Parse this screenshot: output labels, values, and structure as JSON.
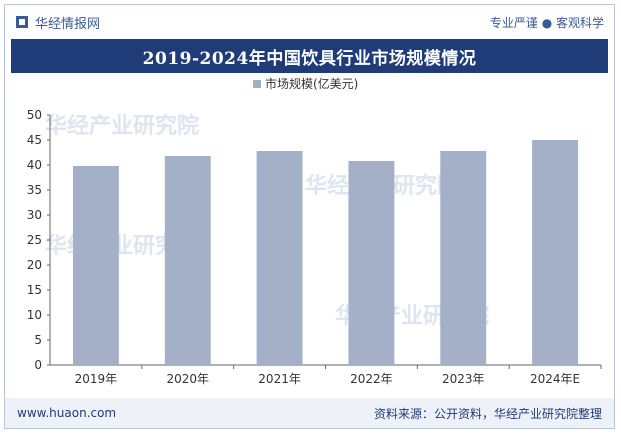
{
  "header": {
    "brand": "华经情报网",
    "tagline": "专业严谨 ● 客观科学"
  },
  "title": "2019-2024年中国饮具行业市场规模情况",
  "footer": {
    "website": "www.huaon.com",
    "source": "资料来源：公开资料，华经产业研究院整理"
  },
  "colors": {
    "title_bg": "#1f3c78",
    "bar": "#a4afc8",
    "brand": "#3a5a95"
  },
  "chart_data": {
    "type": "bar",
    "categories": [
      "2019年",
      "2020年",
      "2021年",
      "2022年",
      "2023年",
      "2024年E"
    ],
    "series": [
      {
        "name": "市场规模(亿美元)",
        "values": [
          39.8,
          41.8,
          42.8,
          40.8,
          42.8,
          45.0
        ]
      }
    ],
    "ylim": [
      0,
      50
    ],
    "yticks": [
      0,
      5,
      10,
      15,
      20,
      25,
      30,
      35,
      40,
      45,
      50
    ],
    "grid": false,
    "legend": "top-center"
  }
}
